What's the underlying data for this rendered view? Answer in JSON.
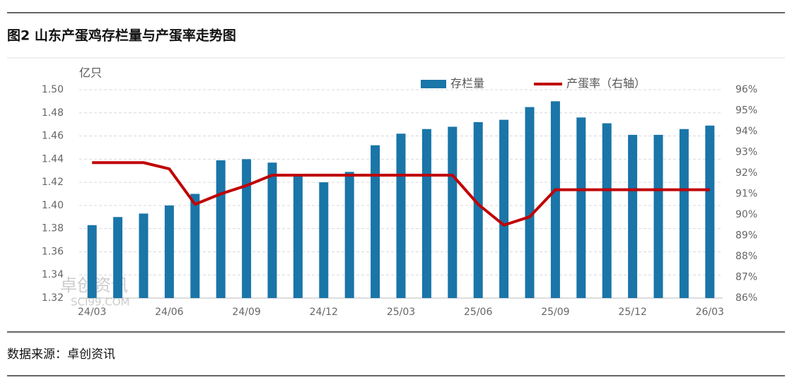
{
  "header": {
    "title": "图2 山东产蛋鸡存栏量与产蛋率走势图"
  },
  "chart_data": {
    "type": "bar_line",
    "y_unit": "亿只",
    "watermark": "卓创资讯",
    "watermark_sub": "SCI99.COM",
    "categories": [
      "24/03",
      null,
      null,
      "24/06",
      null,
      null,
      "24/09",
      null,
      null,
      "24/12",
      null,
      null,
      "25/03",
      null,
      null,
      "25/06",
      null,
      null,
      "25/09",
      null,
      null,
      "25/12",
      null,
      null,
      "26/03"
    ],
    "series": [
      {
        "name": "存栏量",
        "type": "bar",
        "color": "#1a75a8",
        "values": [
          1.383,
          1.39,
          1.393,
          1.4,
          1.41,
          1.439,
          1.44,
          1.437,
          1.425,
          1.42,
          1.429,
          1.452,
          1.462,
          1.466,
          1.468,
          1.472,
          1.474,
          1.485,
          1.49,
          1.476,
          1.471,
          1.461,
          1.461,
          1.466,
          1.469
        ]
      },
      {
        "name": "产蛋率（右轴）",
        "type": "line",
        "axis": "y2",
        "color": "#c00000",
        "values": [
          92.5,
          92.5,
          92.5,
          92.2,
          90.5,
          91.0,
          91.4,
          91.9,
          91.9,
          91.9,
          91.9,
          91.9,
          91.9,
          91.9,
          91.9,
          90.5,
          89.5,
          89.9,
          91.2,
          91.2,
          91.2,
          91.2,
          91.2,
          91.2,
          91.2
        ]
      }
    ],
    "ylim": [
      1.32,
      1.5
    ],
    "yticks": [
      {
        "value": 1.32,
        "label": "1.32"
      },
      {
        "value": 1.34,
        "label": "1.34"
      },
      {
        "value": 1.36,
        "label": "1.36"
      },
      {
        "value": 1.38,
        "label": "1.38"
      },
      {
        "value": 1.4,
        "label": "1.40"
      },
      {
        "value": 1.42,
        "label": "1.42"
      },
      {
        "value": 1.44,
        "label": "1.44"
      },
      {
        "value": 1.46,
        "label": "1.46"
      },
      {
        "value": 1.48,
        "label": "1.48"
      },
      {
        "value": 1.5,
        "label": "1.50"
      }
    ],
    "y2lim": [
      86,
      96
    ],
    "y2ticks": [
      {
        "value": 86,
        "label": "86%"
      },
      {
        "value": 87,
        "label": "87%"
      },
      {
        "value": 88,
        "label": "88%"
      },
      {
        "value": 89,
        "label": "89%"
      },
      {
        "value": 90,
        "label": "90%"
      },
      {
        "value": 91,
        "label": "91%"
      },
      {
        "value": 92,
        "label": "92%"
      },
      {
        "value": 93,
        "label": "93%"
      },
      {
        "value": 94,
        "label": "94%"
      },
      {
        "value": 95,
        "label": "95%"
      },
      {
        "value": 96,
        "label": "96%"
      }
    ],
    "grid": true
  },
  "footer": {
    "source": "数据来源：卓创资讯"
  }
}
